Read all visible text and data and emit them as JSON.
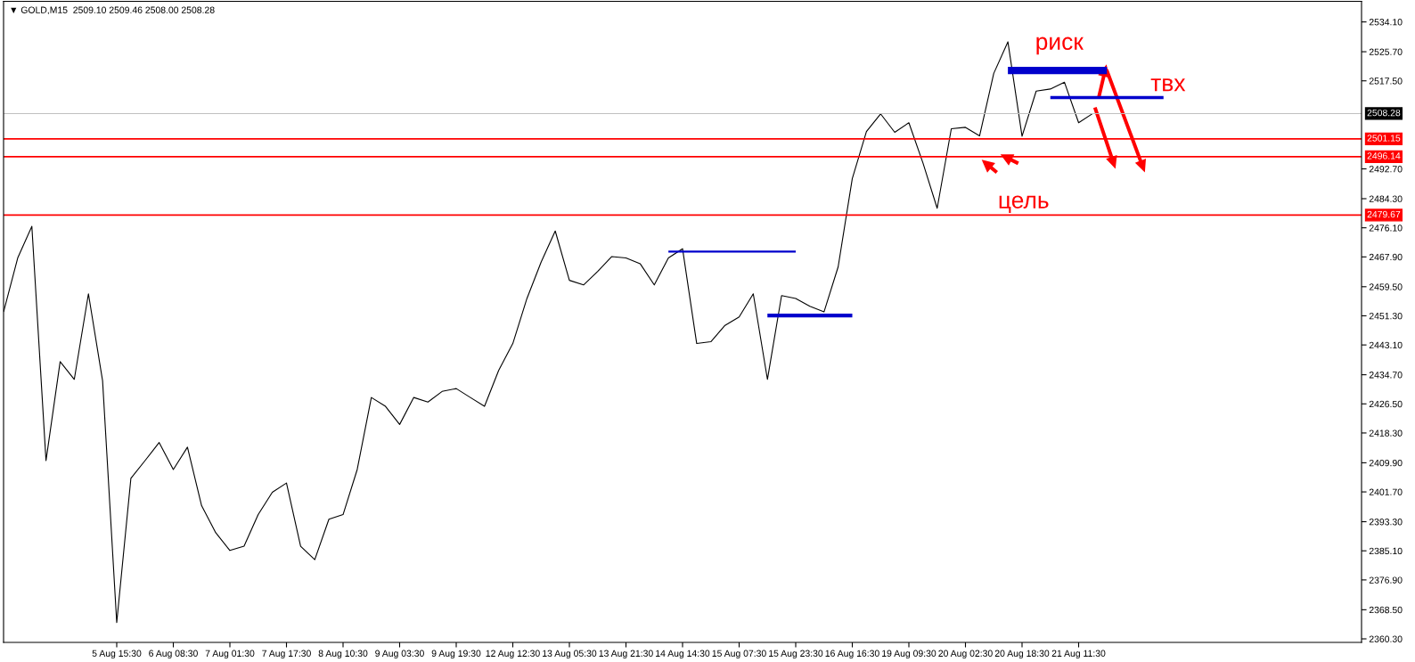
{
  "chart_data": {
    "type": "line",
    "title": "▼ GOLD,M15  2509.10 2509.46 2508.00 2508.28",
    "categories": [
      null,
      null,
      null,
      null,
      null,
      null,
      null,
      null,
      "5 Aug 15:30",
      null,
      null,
      null,
      "6 Aug 08:30",
      null,
      null,
      null,
      "7 Aug 01:30",
      null,
      null,
      null,
      "7 Aug 17:30",
      null,
      null,
      null,
      "8 Aug 10:30",
      null,
      null,
      null,
      "9 Aug 03:30",
      null,
      null,
      null,
      "9 Aug 19:30",
      null,
      null,
      null,
      "12 Aug 12:30",
      null,
      null,
      null,
      "13 Aug 05:30",
      null,
      null,
      null,
      "13 Aug 21:30",
      null,
      null,
      null,
      "14 Aug 14:30",
      null,
      null,
      null,
      "15 Aug 07:30",
      null,
      null,
      null,
      "15 Aug 23:30",
      null,
      null,
      null,
      "16 Aug 16:30",
      null,
      null,
      null,
      "19 Aug 09:30",
      null,
      null,
      null,
      "20 Aug 02:30",
      null,
      null,
      null,
      "20 Aug 18:30",
      null,
      null,
      null,
      "21 Aug 11:30",
      null,
      null,
      null,
      null,
      null,
      null,
      null,
      null,
      null,
      null,
      null,
      null,
      null,
      null,
      null,
      null,
      null,
      null,
      null,
      null
    ],
    "series": [
      {
        "type": "line",
        "color": "#000000",
        "values": [
          2452.4,
          2467.6,
          2476.5,
          2410.5,
          2438.4,
          2433.4,
          2457.5,
          2433.0,
          2364.9,
          2405.5,
          2410.5,
          2415.6,
          2408.0,
          2414.3,
          2397.8,
          2390.2,
          2385.2,
          2386.4,
          2395.3,
          2401.6,
          2404.2,
          2386.4,
          2382.6,
          2394.0,
          2395.3,
          2408.0,
          2428.3,
          2425.8,
          2420.7,
          2428.3,
          2427.0,
          2430.0,
          2430.8,
          2428.3,
          2425.8,
          2435.9,
          2443.5,
          2456.2,
          2466.4,
          2475.2,
          2461.3,
          2460.0,
          2463.8,
          2468.0,
          2467.6,
          2466.0,
          2460.0,
          2467.6,
          2470.2,
          2443.5,
          2444.0,
          2448.6,
          2451.0,
          2457.5,
          2433.4,
          2457.0,
          2456.2,
          2454.0,
          2452.4,
          2465.1,
          2490.0,
          2503.2,
          2508.2,
          2503.0,
          2505.7,
          2494.3,
          2481.6,
          2504.0,
          2504.4,
          2502.0,
          2519.6,
          2528.5,
          2501.9,
          2514.6,
          2515.2,
          2517.1,
          2505.7,
          2508.3,
          null,
          null,
          null,
          null,
          null,
          null,
          null,
          null,
          null,
          null,
          null,
          null,
          null,
          null,
          null,
          null,
          null,
          null,
          null
        ]
      },
      {
        "type": "line",
        "color": "#0000cc",
        "values": [
          null,
          null,
          null,
          null,
          null,
          null,
          null,
          null,
          null,
          null,
          null,
          null,
          null,
          null,
          null,
          null,
          null,
          null,
          null,
          null,
          null,
          null,
          null,
          null,
          null,
          null,
          null,
          null,
          null,
          null,
          null,
          null,
          null,
          null,
          null,
          null,
          null,
          null,
          null,
          null,
          null,
          null,
          null,
          null,
          null,
          null,
          null,
          2469.4,
          2469.4,
          2469.4,
          2469.4,
          2469.4,
          2469.4,
          2469.4,
          2469.4,
          2469.4,
          2469.4,
          null,
          null,
          null,
          null,
          null,
          null,
          null,
          null,
          null,
          null,
          null,
          null,
          null,
          null,
          null,
          null,
          null,
          null,
          null,
          null,
          null,
          null,
          null,
          null,
          null,
          null,
          null,
          null,
          null,
          null,
          null,
          null,
          null,
          null,
          null,
          null,
          null,
          null,
          null,
          null
        ]
      },
      {
        "type": "line",
        "color": "#0000cc",
        "values": [
          null,
          null,
          null,
          null,
          null,
          null,
          null,
          null,
          null,
          null,
          null,
          null,
          null,
          null,
          null,
          null,
          null,
          null,
          null,
          null,
          null,
          null,
          null,
          null,
          null,
          null,
          null,
          null,
          null,
          null,
          null,
          null,
          null,
          null,
          null,
          null,
          null,
          null,
          null,
          null,
          null,
          null,
          null,
          null,
          null,
          null,
          null,
          null,
          null,
          null,
          null,
          null,
          null,
          null,
          2451.4,
          2451.4,
          2451.4,
          2451.4,
          2451.4,
          2451.4,
          2451.4,
          null,
          null,
          null,
          null,
          null,
          null,
          null,
          null,
          null,
          null,
          null,
          null,
          null,
          null,
          null,
          null,
          null,
          null,
          null,
          null,
          null,
          null,
          null,
          null,
          null,
          null,
          null,
          null,
          null,
          null,
          null,
          null,
          null,
          null,
          null,
          null
        ]
      },
      {
        "type": "line",
        "color": "#0000cc",
        "values": [
          null,
          null,
          null,
          null,
          null,
          null,
          null,
          null,
          null,
          null,
          null,
          null,
          null,
          null,
          null,
          null,
          null,
          null,
          null,
          null,
          null,
          null,
          null,
          null,
          null,
          null,
          null,
          null,
          null,
          null,
          null,
          null,
          null,
          null,
          null,
          null,
          null,
          null,
          null,
          null,
          null,
          null,
          null,
          null,
          null,
          null,
          null,
          null,
          null,
          null,
          null,
          null,
          null,
          null,
          null,
          null,
          null,
          null,
          null,
          null,
          null,
          null,
          null,
          null,
          null,
          null,
          null,
          null,
          null,
          null,
          null,
          2520.4,
          2520.4,
          2520.4,
          2520.4,
          2520.4,
          2520.4,
          2520.4,
          2520.4,
          null,
          null,
          null,
          null,
          null,
          null,
          null,
          null,
          null,
          null,
          null,
          null,
          null,
          null,
          null,
          null,
          null,
          null
        ]
      },
      {
        "type": "line",
        "color": "#0000cc",
        "values": [
          null,
          null,
          null,
          null,
          null,
          null,
          null,
          null,
          null,
          null,
          null,
          null,
          null,
          null,
          null,
          null,
          null,
          null,
          null,
          null,
          null,
          null,
          null,
          null,
          null,
          null,
          null,
          null,
          null,
          null,
          null,
          null,
          null,
          null,
          null,
          null,
          null,
          null,
          null,
          null,
          null,
          null,
          null,
          null,
          null,
          null,
          null,
          null,
          null,
          null,
          null,
          null,
          null,
          null,
          null,
          null,
          null,
          null,
          null,
          null,
          null,
          null,
          null,
          null,
          null,
          null,
          null,
          null,
          null,
          null,
          null,
          null,
          null,
          null,
          2512.8,
          2512.8,
          2512.8,
          2512.8,
          2512.8,
          2512.8,
          2512.8,
          2512.8,
          2512.8,
          null,
          null,
          null,
          null,
          null,
          null,
          null,
          null,
          null,
          null,
          null,
          null,
          null,
          null
        ]
      }
    ],
    "ylim": [
      2359.3,
      2539.9
    ],
    "yticks": [
      {
        "value": 2360.3,
        "label": "2360.30"
      },
      {
        "value": 2368.5,
        "label": "2368.50"
      },
      {
        "value": 2376.9,
        "label": "2376.90"
      },
      {
        "value": 2385.1,
        "label": "2385.10"
      },
      {
        "value": 2393.3,
        "label": "2393.30"
      },
      {
        "value": 2401.7,
        "label": "2401.70"
      },
      {
        "value": 2409.9,
        "label": "2409.90"
      },
      {
        "value": 2418.3,
        "label": "2418.30"
      },
      {
        "value": 2426.5,
        "label": "2426.50"
      },
      {
        "value": 2434.7,
        "label": "2434.70"
      },
      {
        "value": 2443.1,
        "label": "2443.10"
      },
      {
        "value": 2451.3,
        "label": "2451.30"
      },
      {
        "value": 2459.5,
        "label": "2459.50"
      },
      {
        "value": 2467.9,
        "label": "2467.90"
      },
      {
        "value": 2476.1,
        "label": "2476.10"
      },
      {
        "value": 2484.3,
        "label": "2484.30"
      },
      {
        "value": 2492.7,
        "label": "2492.70"
      },
      {
        "value": 2517.5,
        "label": "2517.50"
      },
      {
        "value": 2525.7,
        "label": "2525.70"
      },
      {
        "value": 2534.1,
        "label": "2534.10"
      }
    ],
    "ref_lines": [
      {
        "axis": "y",
        "value": 2508.28,
        "label": "2508.28",
        "color": "#c0c0c0"
      },
      {
        "axis": "y",
        "value": 2501.15,
        "label": "2501.15",
        "color": "#ff0000"
      },
      {
        "axis": "y",
        "value": 2496.14,
        "label": "2496.14",
        "color": "#ff0000"
      },
      {
        "axis": "y",
        "value": 2479.67,
        "label": "2479.67",
        "color": "#ff0000"
      }
    ],
    "annotations": [
      "риск",
      "твх",
      "цель"
    ],
    "grid": false,
    "legend": false
  }
}
